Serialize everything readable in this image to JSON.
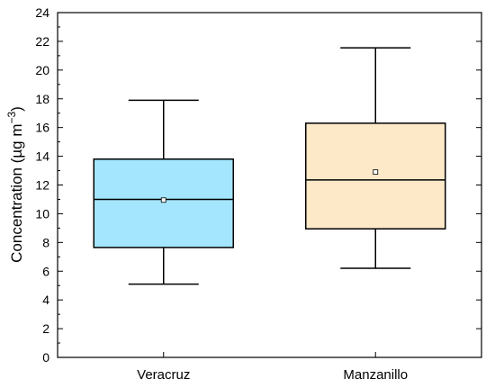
{
  "chart_data": {
    "type": "box",
    "ylabel": "Concentration (µg m",
    "ylabel_sup": "−3",
    "ylabel_close": ")",
    "ylim": [
      0,
      24
    ],
    "yticks": [
      0,
      2,
      4,
      6,
      8,
      10,
      12,
      14,
      16,
      18,
      20,
      22,
      24
    ],
    "grid": false,
    "categories": [
      "Veracruz",
      "Manzanillo"
    ],
    "boxes": [
      {
        "category": "Veracruz",
        "min": 5.1,
        "q1": 7.65,
        "median": 11.0,
        "q3": 13.8,
        "max": 17.9,
        "mean": 10.95,
        "color": "#a4e6fd"
      },
      {
        "category": "Manzanillo",
        "min": 6.2,
        "q1": 8.95,
        "median": 12.35,
        "q3": 16.3,
        "max": 21.55,
        "mean": 12.9,
        "color": "#fde8c8"
      }
    ]
  }
}
